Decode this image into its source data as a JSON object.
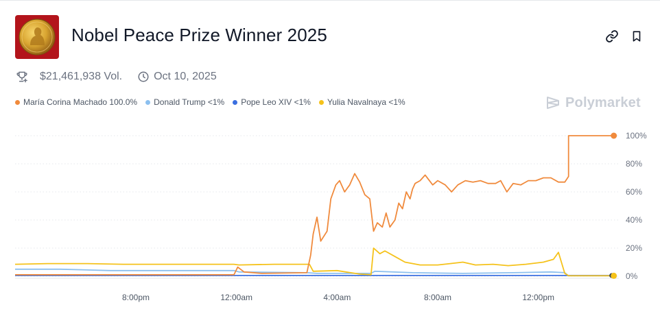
{
  "market": {
    "title": "Nobel Peace Prize Winner 2025",
    "volume": "$21,461,938 Vol.",
    "date": "Oct 10, 2025"
  },
  "icons": {
    "market_image": "nobel-medal-icon",
    "link": "link-icon",
    "bookmark": "bookmark-icon",
    "volume": "trophy-icon",
    "date": "clock-icon",
    "brand": "polymarket-logo-icon"
  },
  "brand": {
    "name": "Polymarket"
  },
  "chart_data": {
    "type": "line",
    "title": "",
    "xlabel": "",
    "ylabel": "",
    "ylim": [
      0,
      100
    ],
    "y_ticks": [
      "100%",
      "80%",
      "60%",
      "40%",
      "20%",
      "0%"
    ],
    "y_tick_values": [
      100,
      80,
      60,
      40,
      20,
      0
    ],
    "x_tick_labels": [
      "8:00pm",
      "12:00am",
      "4:00am",
      "8:00am",
      "12:00pm"
    ],
    "x_tick_hours": [
      20,
      24,
      28,
      32,
      36
    ],
    "x_range_hours": [
      15.2,
      39.2
    ],
    "grid": "horizontal dotted",
    "legend_position": "top-left",
    "series": [
      {
        "name": "María Corina Machado",
        "label": "100.0%",
        "color": "#f08a3c",
        "end_marker": true,
        "points": [
          [
            15.2,
            1
          ],
          [
            17,
            1
          ],
          [
            20,
            1
          ],
          [
            22,
            1
          ],
          [
            23.9,
            1
          ],
          [
            24.05,
            6.5
          ],
          [
            24.3,
            3
          ],
          [
            25,
            2
          ],
          [
            26.8,
            2.5
          ],
          [
            26.95,
            15
          ],
          [
            27.05,
            30
          ],
          [
            27.2,
            42
          ],
          [
            27.35,
            25
          ],
          [
            27.6,
            32
          ],
          [
            27.75,
            55
          ],
          [
            27.95,
            65
          ],
          [
            28.1,
            68
          ],
          [
            28.3,
            60
          ],
          [
            28.5,
            65
          ],
          [
            28.7,
            73
          ],
          [
            28.9,
            67
          ],
          [
            29.1,
            58
          ],
          [
            29.3,
            55
          ],
          [
            29.45,
            32
          ],
          [
            29.6,
            38
          ],
          [
            29.8,
            35
          ],
          [
            29.95,
            45
          ],
          [
            30.1,
            35
          ],
          [
            30.3,
            40
          ],
          [
            30.45,
            52
          ],
          [
            30.6,
            48
          ],
          [
            30.75,
            60
          ],
          [
            30.9,
            55
          ],
          [
            31.0,
            62
          ],
          [
            31.1,
            66
          ],
          [
            31.3,
            68
          ],
          [
            31.5,
            72
          ],
          [
            31.8,
            65
          ],
          [
            32.0,
            68
          ],
          [
            32.3,
            65
          ],
          [
            32.55,
            60
          ],
          [
            32.8,
            65
          ],
          [
            33.1,
            68
          ],
          [
            33.4,
            67
          ],
          [
            33.7,
            68
          ],
          [
            34.0,
            66
          ],
          [
            34.3,
            66
          ],
          [
            34.5,
            68
          ],
          [
            34.75,
            60
          ],
          [
            35.0,
            66
          ],
          [
            35.3,
            65
          ],
          [
            35.6,
            68
          ],
          [
            35.9,
            68
          ],
          [
            36.2,
            70
          ],
          [
            36.5,
            70
          ],
          [
            36.8,
            67
          ],
          [
            37.05,
            67
          ],
          [
            37.2,
            71
          ],
          [
            37.2,
            100
          ],
          [
            39.0,
            100
          ]
        ]
      },
      {
        "name": "Donald Trump",
        "label": "<1%",
        "color": "#8cc0ef",
        "end_marker": false,
        "points": [
          [
            15.2,
            5
          ],
          [
            17,
            5
          ],
          [
            19,
            4
          ],
          [
            22,
            4
          ],
          [
            23.9,
            4
          ],
          [
            24.1,
            3
          ],
          [
            26.8,
            2.5
          ],
          [
            27.2,
            2
          ],
          [
            28.5,
            2
          ],
          [
            29.35,
            2
          ],
          [
            29.5,
            3.5
          ],
          [
            31,
            2.5
          ],
          [
            33,
            2
          ],
          [
            35,
            2.5
          ],
          [
            36.5,
            3
          ],
          [
            37.05,
            2.5
          ],
          [
            37.2,
            0.3
          ],
          [
            39.0,
            0.3
          ]
        ]
      },
      {
        "name": "Pope Leo XIV",
        "label": "<1%",
        "color": "#3b6fe0",
        "end_marker": false,
        "points": [
          [
            15.2,
            0.5
          ],
          [
            39.0,
            0.5
          ]
        ]
      },
      {
        "name": "Yulia Navalnaya",
        "label": "<1%",
        "color": "#f5c21a",
        "end_marker": true,
        "points": [
          [
            15.2,
            8.5
          ],
          [
            16.5,
            9
          ],
          [
            18,
            9
          ],
          [
            19.5,
            8.5
          ],
          [
            21,
            8.5
          ],
          [
            22.5,
            8.5
          ],
          [
            23.9,
            8.5
          ],
          [
            24.1,
            8
          ],
          [
            25.5,
            8.5
          ],
          [
            26.9,
            8.5
          ],
          [
            27.05,
            3.5
          ],
          [
            28.0,
            4
          ],
          [
            28.9,
            1.5
          ],
          [
            29.35,
            1
          ],
          [
            29.45,
            20
          ],
          [
            29.7,
            16
          ],
          [
            29.9,
            18
          ],
          [
            30.3,
            14
          ],
          [
            30.7,
            10
          ],
          [
            31.3,
            8
          ],
          [
            32,
            8
          ],
          [
            32.5,
            9
          ],
          [
            33,
            10
          ],
          [
            33.5,
            8
          ],
          [
            34.2,
            8.5
          ],
          [
            34.8,
            7.5
          ],
          [
            35.5,
            8.5
          ],
          [
            36.2,
            10
          ],
          [
            36.6,
            12
          ],
          [
            36.8,
            17
          ],
          [
            37.05,
            2
          ],
          [
            37.2,
            0.3
          ],
          [
            39.0,
            0.3
          ]
        ]
      }
    ]
  }
}
